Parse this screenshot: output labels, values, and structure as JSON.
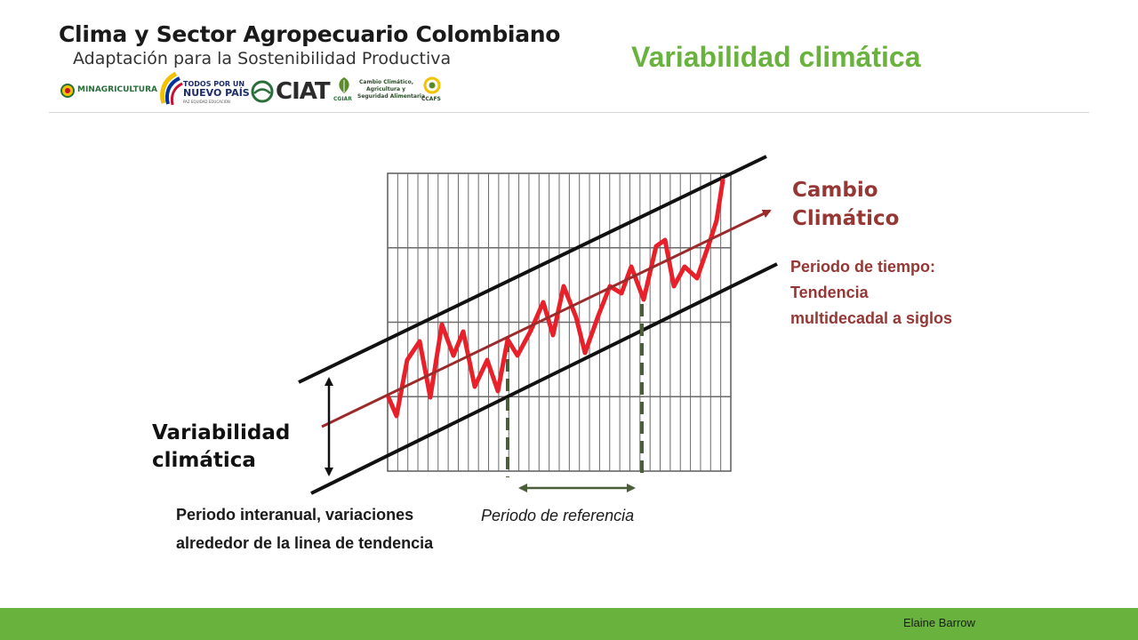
{
  "header": {
    "title": "Clima y Sector Agropecuario Colombiano",
    "subtitle": "Adaptación para la Sostenibilidad Productiva",
    "logos": {
      "minagricultura": "MINAGRICULTURA",
      "todos_line1": "TODOS POR UN",
      "todos_line2": "NUEVO PAÍS",
      "todos_line3": "PAZ  EQUIDAD  EDUCACIÓN",
      "ciat": "CIAT",
      "cgiar": "CGIAR",
      "ccafs_line1": "Cambio Climático,",
      "ccafs_line2": "Agricultura y",
      "ccafs_line3": "Seguridad Alimentaria",
      "ccafs": "CCAFS"
    }
  },
  "slide_title": "Variabilidad climática",
  "diagram": {
    "label_cambio": "Cambio Climático",
    "label_periodo_tiempo": "Periodo de tiempo: Tendencia multidecadal a siglos",
    "label_variabilidad": "Variabilidad climática",
    "label_interanual": "Periodo interanual, variaciones alrededor de la linea de tendencia",
    "label_referencia": "Periodo de referencia"
  },
  "footer": {
    "credit": "Elaine Barrow"
  },
  "colors": {
    "accent_green": "#6ab23e",
    "series_red": "#e8202a",
    "trend_red": "#9b2a2a",
    "label_red": "#953735",
    "ref_dash_green": "#4a5e3a",
    "grid": "#5a5a5a"
  }
}
